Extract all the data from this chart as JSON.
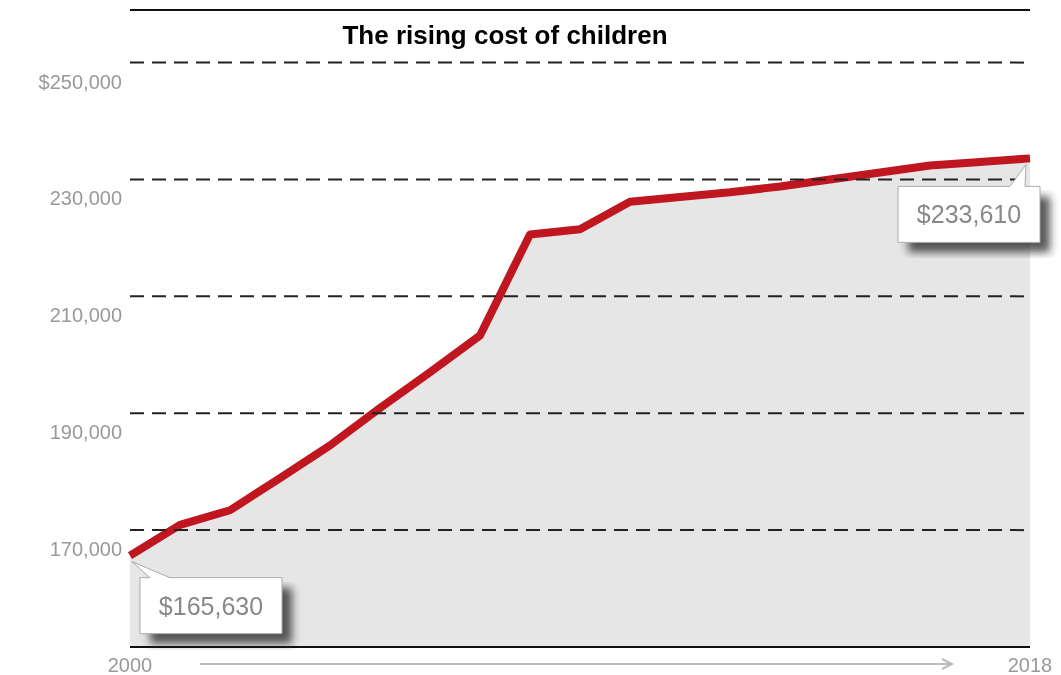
{
  "chart_data": {
    "type": "area",
    "title": "The rising cost of children",
    "x": [
      2000,
      2001,
      2002,
      2003,
      2004,
      2005,
      2006,
      2007,
      2008,
      2009,
      2010,
      2011,
      2012,
      2013,
      2014,
      2015,
      2016,
      2017,
      2018
    ],
    "series": [
      {
        "color": "#c0161f",
        "values": [
          165630,
          170900,
          173400,
          178900,
          184500,
          190900,
          197000,
          203300,
          220600,
          221500,
          226200,
          227000,
          227800,
          228800,
          230000,
          231200,
          232400,
          233000,
          233610
        ],
        "value_labels": [
          "$165,630",
          null,
          null,
          null,
          null,
          null,
          null,
          null,
          null,
          null,
          null,
          null,
          null,
          null,
          null,
          null,
          null,
          null,
          "$233,610"
        ]
      }
    ],
    "xlim": [
      2000,
      2018
    ],
    "xticks": [
      {
        "value": 2000,
        "label": "2000"
      },
      {
        "value": 2018,
        "label": "2018"
      }
    ],
    "ylim": [
      150000,
      259000
    ],
    "yticks": [
      {
        "value": 250000,
        "label": "$250,000"
      },
      {
        "value": 230000,
        "label": "230,000"
      },
      {
        "value": 210000,
        "label": "210,000"
      },
      {
        "value": 190000,
        "label": "190,000"
      },
      {
        "value": 170000,
        "label": "170,000"
      }
    ],
    "grid": "y",
    "line_style": "solid"
  }
}
